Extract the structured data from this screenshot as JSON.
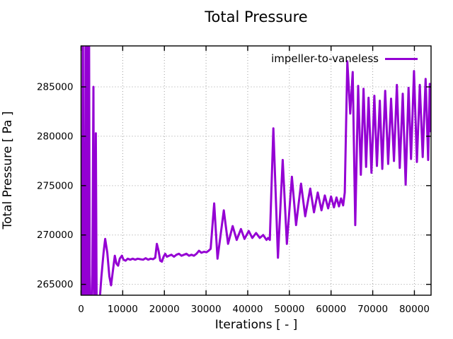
{
  "title": "Total Pressure",
  "chart_data": {
    "type": "line",
    "title": "Total Pressure",
    "xlabel": "Iterations [ - ]",
    "ylabel": "Total Pressure [ Pa ]",
    "xlim": [
      0,
      84000
    ],
    "ylim": [
      263900,
      289150
    ],
    "xticks": [
      0,
      10000,
      20000,
      30000,
      40000,
      50000,
      60000,
      70000,
      80000
    ],
    "yticks": [
      265000,
      270000,
      275000,
      280000,
      285000
    ],
    "grid": true,
    "grid_style": "dotted",
    "legend_position": "top-right-inside",
    "background_color": "#ffffff",
    "axis_color": "#000000",
    "series": [
      {
        "name": "impeller-to-vaneless",
        "color": "#9400d3",
        "points": [
          [
            100,
            280000
          ],
          [
            250,
            258500
          ],
          [
            450,
            294500
          ],
          [
            650,
            258500
          ],
          [
            800,
            259000
          ],
          [
            950,
            258800
          ],
          [
            1100,
            294500
          ],
          [
            1300,
            258500
          ],
          [
            1500,
            294500
          ],
          [
            1700,
            258500
          ],
          [
            1900,
            294500
          ],
          [
            2100,
            260000
          ],
          [
            2300,
            260800
          ],
          [
            2500,
            262500
          ],
          [
            2700,
            266000
          ],
          [
            2970,
            285000
          ],
          [
            3150,
            262800
          ],
          [
            3350,
            261500
          ],
          [
            3550,
            280300
          ],
          [
            3750,
            262000
          ],
          [
            3900,
            260800
          ],
          [
            4400,
            263000
          ],
          [
            4900,
            265800
          ],
          [
            5400,
            268200
          ],
          [
            5800,
            269600
          ],
          [
            6300,
            268200
          ],
          [
            6800,
            265800
          ],
          [
            7200,
            264900
          ],
          [
            7600,
            266200
          ],
          [
            8100,
            267900
          ],
          [
            8500,
            267100
          ],
          [
            8900,
            266900
          ],
          [
            9300,
            267600
          ],
          [
            9800,
            267900
          ],
          [
            10200,
            267500
          ],
          [
            10700,
            267400
          ],
          [
            11200,
            267600
          ],
          [
            11800,
            267500
          ],
          [
            12400,
            267600
          ],
          [
            13000,
            267500
          ],
          [
            13600,
            267600
          ],
          [
            14200,
            267550
          ],
          [
            14900,
            267500
          ],
          [
            15500,
            267650
          ],
          [
            16100,
            267500
          ],
          [
            16700,
            267600
          ],
          [
            17300,
            267550
          ],
          [
            17800,
            267700
          ],
          [
            18200,
            269100
          ],
          [
            18600,
            268400
          ],
          [
            19000,
            267400
          ],
          [
            19400,
            267300
          ],
          [
            19800,
            267800
          ],
          [
            20200,
            268100
          ],
          [
            20600,
            267800
          ],
          [
            21100,
            267900
          ],
          [
            21700,
            268000
          ],
          [
            22300,
            267800
          ],
          [
            22900,
            268000
          ],
          [
            23500,
            268100
          ],
          [
            24100,
            267900
          ],
          [
            24700,
            268000
          ],
          [
            25300,
            268100
          ],
          [
            25900,
            267900
          ],
          [
            26500,
            268000
          ],
          [
            27100,
            267900
          ],
          [
            27700,
            268100
          ],
          [
            28300,
            268400
          ],
          [
            28900,
            268200
          ],
          [
            29500,
            268300
          ],
          [
            30100,
            268250
          ],
          [
            30600,
            268400
          ],
          [
            31100,
            268600
          ],
          [
            31950,
            273200
          ],
          [
            32750,
            267600
          ],
          [
            34260,
            272500
          ],
          [
            35280,
            269100
          ],
          [
            36380,
            270900
          ],
          [
            37360,
            269500
          ],
          [
            38380,
            270600
          ],
          [
            39230,
            269600
          ],
          [
            40250,
            270400
          ],
          [
            41100,
            269700
          ],
          [
            42000,
            270200
          ],
          [
            42900,
            269700
          ],
          [
            43700,
            270000
          ],
          [
            44500,
            269500
          ],
          [
            44900,
            269700
          ],
          [
            45300,
            269500
          ],
          [
            46150,
            280800
          ],
          [
            47250,
            267700
          ],
          [
            48400,
            277600
          ],
          [
            49400,
            269100
          ],
          [
            50600,
            275900
          ],
          [
            51600,
            271000
          ],
          [
            52800,
            275200
          ],
          [
            53800,
            271900
          ],
          [
            55000,
            274700
          ],
          [
            55900,
            272300
          ],
          [
            56800,
            274300
          ],
          [
            57700,
            272500
          ],
          [
            58500,
            274000
          ],
          [
            59300,
            272700
          ],
          [
            60000,
            273900
          ],
          [
            60700,
            272800
          ],
          [
            61300,
            273800
          ],
          [
            61900,
            272900
          ],
          [
            62400,
            273700
          ],
          [
            62900,
            273000
          ],
          [
            63300,
            274300
          ],
          [
            63900,
            287600
          ],
          [
            64600,
            282300
          ],
          [
            65200,
            286500
          ],
          [
            65800,
            271000
          ],
          [
            66500,
            285100
          ],
          [
            67150,
            276100
          ],
          [
            67800,
            284800
          ],
          [
            68400,
            276900
          ],
          [
            69000,
            283900
          ],
          [
            69700,
            276300
          ],
          [
            70400,
            284100
          ],
          [
            71000,
            277000
          ],
          [
            71700,
            283600
          ],
          [
            72300,
            276700
          ],
          [
            73000,
            284600
          ],
          [
            73700,
            277200
          ],
          [
            74400,
            283800
          ],
          [
            75100,
            277500
          ],
          [
            75800,
            285200
          ],
          [
            76500,
            276800
          ],
          [
            77200,
            284300
          ],
          [
            77900,
            275100
          ],
          [
            78600,
            284900
          ],
          [
            79200,
            277700
          ],
          [
            79900,
            286600
          ],
          [
            80600,
            277400
          ],
          [
            81300,
            285200
          ],
          [
            82000,
            277900
          ],
          [
            82700,
            285800
          ],
          [
            83300,
            277600
          ],
          [
            83700,
            285300
          ],
          [
            83900,
            280500
          ]
        ]
      }
    ]
  }
}
